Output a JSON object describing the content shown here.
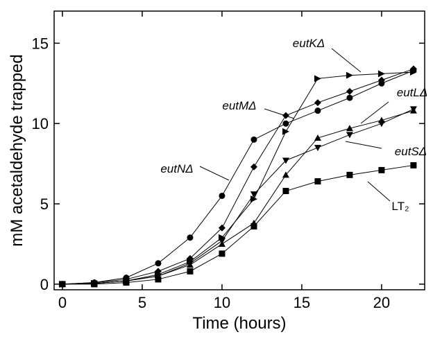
{
  "chart_data": {
    "type": "line",
    "xlabel": "Time (hours)",
    "ylabel": "mM acetaldehyde trapped",
    "x": [
      0,
      2,
      4,
      6,
      8,
      10,
      12,
      14,
      16,
      18,
      20,
      22
    ],
    "xlim": [
      -0.52,
      22.7
    ],
    "ylim": [
      -0.35,
      17.0
    ],
    "xticks": [
      0,
      5,
      10,
      15,
      20
    ],
    "yticks": [
      0,
      5,
      10,
      15
    ],
    "series": [
      {
        "name": "eutKΔ",
        "marker": "triangle-right",
        "color": "#000000",
        "values": [
          0,
          0.05,
          0.2,
          0.6,
          1.4,
          2.9,
          5.3,
          9.5,
          12.8,
          13.0,
          13.1,
          13.2
        ]
      },
      {
        "name": "eutMΔ",
        "marker": "diamond",
        "color": "#000000",
        "values": [
          0,
          0.1,
          0.3,
          0.8,
          1.6,
          3.5,
          7.3,
          10.5,
          11.3,
          12.0,
          12.7,
          13.4
        ]
      },
      {
        "name": "eutLΔ",
        "marker": "triangle-up",
        "color": "#000000",
        "values": [
          0,
          0.05,
          0.2,
          0.5,
          1.2,
          2.5,
          3.8,
          6.8,
          9.1,
          9.7,
          10.2,
          10.8
        ]
      },
      {
        "name": "eutSΔ",
        "marker": "triangle-down",
        "color": "#000000",
        "values": [
          0,
          0.05,
          0.2,
          0.5,
          1.3,
          2.7,
          5.6,
          7.7,
          8.5,
          9.3,
          10.0,
          10.9
        ]
      },
      {
        "name": "eutNΔ",
        "marker": "circle",
        "color": "#000000",
        "values": [
          0,
          0.1,
          0.4,
          1.3,
          2.9,
          5.5,
          9.0,
          10.0,
          10.8,
          11.6,
          12.5,
          13.3
        ]
      },
      {
        "name": "LT₂",
        "marker": "square",
        "color": "#000000",
        "values": [
          0,
          0,
          0.1,
          0.3,
          0.8,
          1.9,
          3.6,
          5.8,
          6.4,
          6.8,
          7.1,
          7.4
        ]
      }
    ]
  }
}
